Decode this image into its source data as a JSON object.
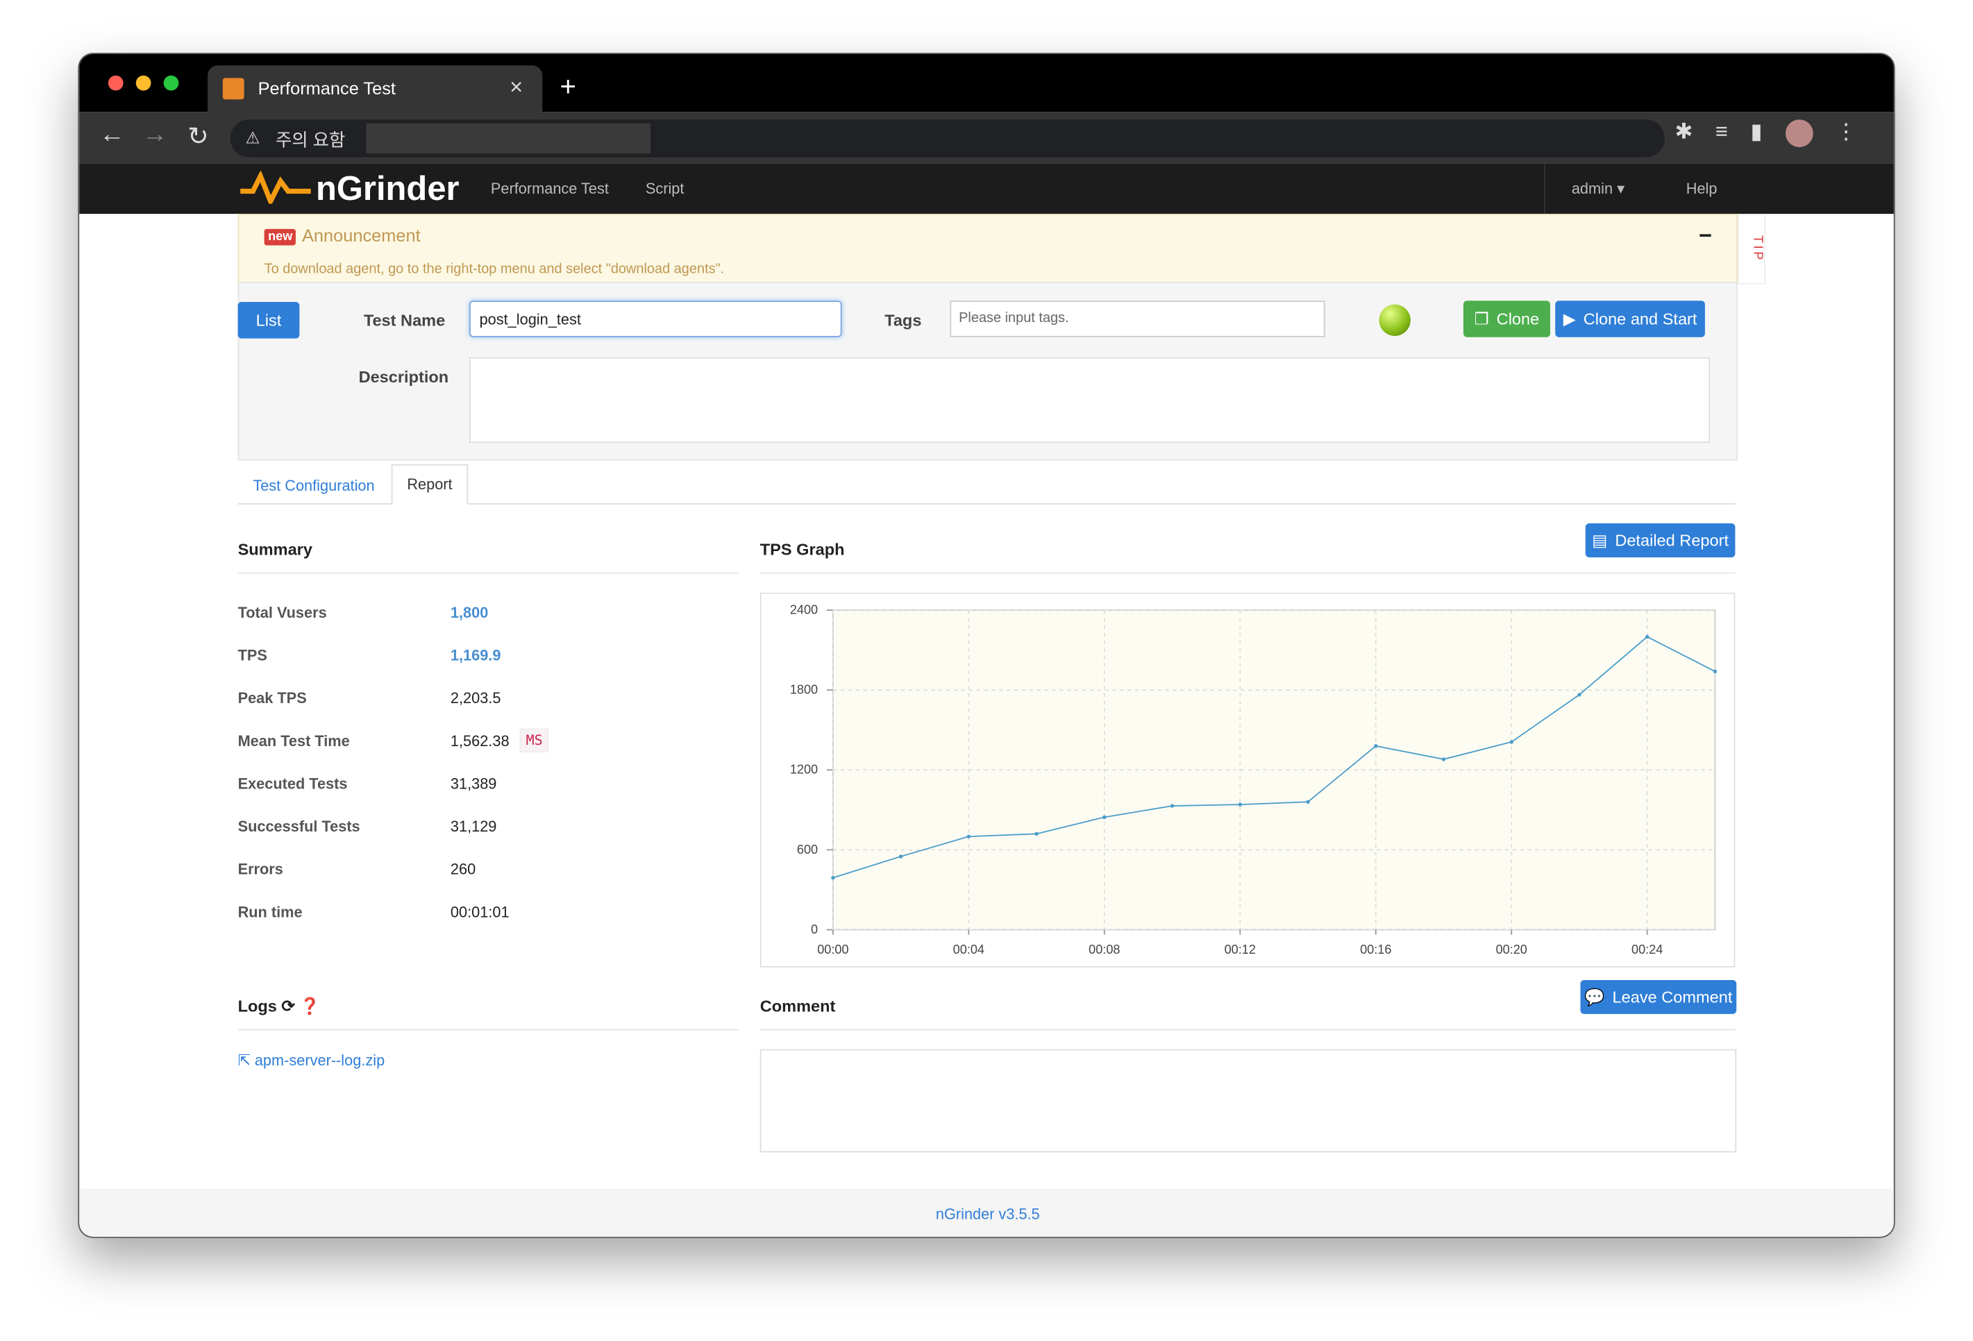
{
  "browser": {
    "tab_title": "Performance Test",
    "address_warning": "주의 요함"
  },
  "nav": {
    "brand": "nGrinder",
    "items": [
      "Performance Test",
      "Script"
    ],
    "user": "admin",
    "help": "Help"
  },
  "announcement": {
    "badge": "new",
    "title": "Announcement",
    "text": "To download agent, go to the right-top menu and select \"download agents\".",
    "collapse": "−",
    "tip": "TIP"
  },
  "form": {
    "list_button": "List",
    "test_name_label": "Test Name",
    "test_name_value": "post_login_test",
    "tags_label": "Tags",
    "tags_placeholder": "Please input tags.",
    "clone_button": "Clone",
    "clone_start_button": "Clone and Start",
    "description_label": "Description"
  },
  "tabs": [
    "Test Configuration",
    "Report"
  ],
  "summary": {
    "title": "Summary",
    "rows": [
      {
        "label": "Total Vusers",
        "value": "1,800"
      },
      {
        "label": "TPS",
        "value": "1,169.9"
      },
      {
        "label": "Peak TPS",
        "value": "2,203.5"
      },
      {
        "label": "Mean Test Time",
        "value": "1,562.38",
        "unit": "MS"
      },
      {
        "label": "Executed Tests",
        "value": "31,389"
      },
      {
        "label": "Successful Tests",
        "value": "31,129"
      },
      {
        "label": "Errors",
        "value": "260"
      },
      {
        "label": "Run time",
        "value": "00:01:01"
      }
    ]
  },
  "tps_graph": {
    "title": "TPS Graph",
    "button": "Detailed Report"
  },
  "chart_data": {
    "type": "line",
    "x": [
      0,
      2,
      4,
      6,
      8,
      10,
      12,
      14,
      16,
      18,
      20,
      22,
      24,
      26
    ],
    "series": [
      {
        "name": "TPS",
        "color": "#4a9cc9",
        "values": [
          390,
          550,
          700,
          720,
          845,
          930,
          940,
          960,
          1380,
          1280,
          1410,
          1765,
          2200,
          1940
        ]
      }
    ],
    "xlim": [
      0,
      26
    ],
    "xticks": [
      {
        "value": 0,
        "label": "00:00"
      },
      {
        "value": 4,
        "label": "00:04"
      },
      {
        "value": 8,
        "label": "00:08"
      },
      {
        "value": 12,
        "label": "00:12"
      },
      {
        "value": 16,
        "label": "00:16"
      },
      {
        "value": 20,
        "label": "00:20"
      },
      {
        "value": 24,
        "label": "00:24"
      }
    ],
    "ylim": [
      0,
      2400
    ],
    "yticks": [
      0,
      600,
      1200,
      1800,
      2400
    ],
    "grid": true
  },
  "logs": {
    "title": "Logs",
    "file": "apm-server--log.zip"
  },
  "comment": {
    "title": "Comment",
    "button": "Leave Comment"
  },
  "footer": "nGrinder v3.5.5"
}
